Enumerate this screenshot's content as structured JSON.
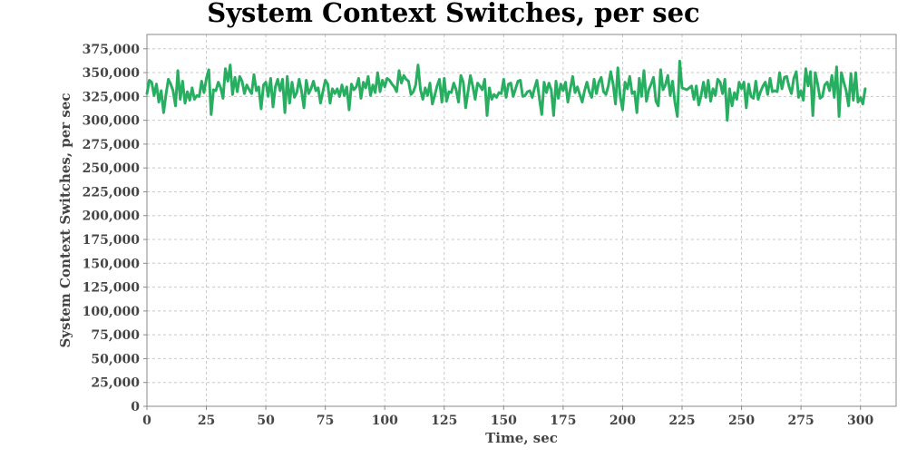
{
  "chart_data": {
    "type": "line",
    "title": "System Context Switches, per sec",
    "xlabel": "Time, sec",
    "ylabel": "System Context Switches, per sec",
    "xlim": [
      0,
      315
    ],
    "ylim": [
      0,
      390000
    ],
    "xticks": [
      0,
      25,
      50,
      75,
      100,
      125,
      150,
      175,
      200,
      225,
      250,
      275,
      300
    ],
    "xtick_labels": [
      "0",
      "25",
      "50",
      "75",
      "100",
      "125",
      "150",
      "175",
      "200",
      "225",
      "250",
      "275",
      "300"
    ],
    "yticks": [
      0,
      25000,
      50000,
      75000,
      100000,
      125000,
      150000,
      175000,
      200000,
      225000,
      250000,
      275000,
      300000,
      325000,
      350000,
      375000
    ],
    "ytick_labels": [
      "0",
      "25,000",
      "50,000",
      "75,000",
      "100,000",
      "125,000",
      "150,000",
      "175,000",
      "200,000",
      "225,000",
      "250,000",
      "275,000",
      "300,000",
      "325,000",
      "350,000",
      "375,000"
    ],
    "grid": true,
    "colors": {
      "line": "#27ae60",
      "grid": "#c8c8c8",
      "frame": "#888888"
    },
    "series": [
      {
        "x_start": 0,
        "x_step": 1,
        "values": [
          328000,
          342000,
          340000,
          326000,
          338000,
          319000,
          331000,
          308000,
          327000,
          343000,
          338000,
          331000,
          315000,
          352000,
          322000,
          341000,
          318000,
          330000,
          321000,
          334000,
          322000,
          326000,
          325000,
          341000,
          329000,
          344000,
          353000,
          306000,
          332000,
          331000,
          340000,
          334000,
          323000,
          354000,
          341000,
          358000,
          327000,
          345000,
          330000,
          346000,
          341000,
          328000,
          337000,
          332000,
          328000,
          348000,
          331000,
          335000,
          312000,
          337000,
          340000,
          325000,
          344000,
          314000,
          335000,
          343000,
          331000,
          343000,
          308000,
          346000,
          318000,
          340000,
          324000,
          329000,
          343000,
          331000,
          313000,
          342000,
          328000,
          333000,
          341000,
          331000,
          334000,
          318000,
          330000,
          342000,
          338000,
          318000,
          333000,
          328000,
          333000,
          325000,
          337000,
          326000,
          335000,
          311000,
          338000,
          332000,
          335000,
          344000,
          323000,
          340000,
          334000,
          346000,
          326000,
          337000,
          329000,
          350000,
          330000,
          342000,
          335000,
          344000,
          342000,
          338000,
          335000,
          330000,
          352000,
          339000,
          347000,
          343000,
          341000,
          327000,
          330000,
          337000,
          358000,
          332000,
          322000,
          334000,
          326000,
          339000,
          317000,
          326000,
          336000,
          343000,
          319000,
          344000,
          320000,
          330000,
          329000,
          339000,
          332000,
          319000,
          347000,
          340000,
          313000,
          330000,
          347000,
          336000,
          322000,
          339000,
          336000,
          332000,
          343000,
          305000,
          334000,
          322000,
          327000,
          324000,
          329000,
          328000,
          343000,
          324000,
          338000,
          339000,
          325000,
          333000,
          341000,
          342000,
          325000,
          326000,
          330000,
          331000,
          324000,
          334000,
          342000,
          323000,
          306000,
          340000,
          329000,
          339000,
          332000,
          305000,
          341000,
          323000,
          338000,
          331000,
          340000,
          319000,
          333000,
          346000,
          329000,
          335000,
          327000,
          319000,
          331000,
          340000,
          330000,
          324000,
          343000,
          328000,
          340000,
          345000,
          330000,
          327000,
          336000,
          351000,
          338000,
          317000,
          355000,
          325000,
          311000,
          340000,
          333000,
          346000,
          328000,
          330000,
          308000,
          344000,
          325000,
          352000,
          320000,
          332000,
          338000,
          345000,
          320000,
          315000,
          353000,
          332000,
          337000,
          347000,
          326000,
          341000,
          319000,
          304000,
          362000,
          334000,
          333000,
          332000,
          334000,
          336000,
          322000,
          336000,
          316000,
          326000,
          340000,
          324000,
          342000,
          320000,
          333000,
          326000,
          343000,
          340000,
          328000,
          343000,
          300000,
          333000,
          315000,
          329000,
          322000,
          340000,
          333000,
          340000,
          313000,
          338000,
          325000,
          323000,
          341000,
          322000,
          330000,
          336000,
          340000,
          327000,
          344000,
          330000,
          331000,
          330000,
          350000,
          333000,
          345000,
          346000,
          335000,
          328000,
          344000,
          351000,
          324000,
          331000,
          321000,
          354000,
          336000,
          351000,
          305000,
          350000,
          338000,
          323000,
          325000,
          337000,
          340000,
          331000,
          347000,
          324000,
          356000,
          304000,
          350000,
          340000,
          331000,
          315000,
          349000,
          321000,
          350000,
          319000,
          324000,
          317000,
          333000
        ]
      }
    ]
  }
}
